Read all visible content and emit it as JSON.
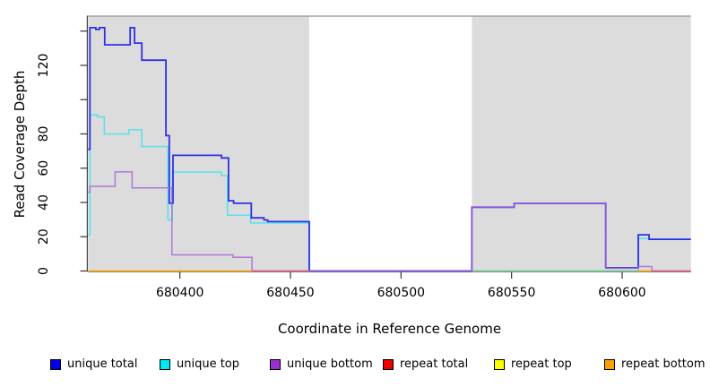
{
  "chart_data": {
    "type": "step-line",
    "title": "",
    "xlabel": "Coordinate in Reference Genome",
    "ylabel": "Read Coverage Depth",
    "xlim": [
      680358.5,
      680631.1
    ],
    "ylim": [
      0,
      149
    ],
    "x_ticks": {
      "values": [
        680400,
        680450,
        680500,
        680550,
        680600
      ],
      "labels": [
        "680400",
        "680450",
        "680500",
        "680550",
        "680600"
      ]
    },
    "y_ticks": {
      "values": [
        0,
        20,
        40,
        60,
        80,
        100,
        120,
        140
      ],
      "labels": [
        "0",
        "20",
        "40",
        "60",
        "80",
        "",
        "120",
        ""
      ]
    },
    "grid": false,
    "panel_color": "#DCDCDC",
    "background_panels": [
      [
        680358.5,
        680458.5
      ],
      [
        680532,
        680631.1
      ]
    ],
    "coverage_gap": {
      "range": [
        680458.5,
        680532
      ],
      "top_line_color": "#A0A0A0"
    },
    "series": [
      {
        "name": "unique top",
        "color": "#35E2F2",
        "opacity": 0.8,
        "width": 1.5,
        "segments": [
          {
            "points": [
              [
                680358.5,
                21
              ],
              [
                680359.3,
                91
              ],
              [
                680362.7,
                90
              ],
              [
                680365.8,
                80
              ],
              [
                680376.9,
                82.4
              ],
              [
                680382.8,
                72.6
              ],
              [
                680394.6,
                29.8
              ],
              [
                680396.6,
                57.7
              ],
              [
                680418.8,
                55.5
              ],
              [
                680421.5,
                32.5
              ],
              [
                680432,
                28
              ],
              [
                680458.5,
                0
              ],
              [
                680607.3,
                19
              ],
              [
                680612.2,
                18.5
              ]
            ],
            "end": 680631.1
          }
        ]
      },
      {
        "name": "unique total",
        "color": "#2222E6",
        "opacity": 0.92,
        "width": 1.8,
        "segments": [
          {
            "points": [
              [
                680358.5,
                71
              ],
              [
                680359.3,
                142
              ],
              [
                680362,
                141
              ],
              [
                680363.6,
                142
              ],
              [
                680366,
                132
              ],
              [
                680377.5,
                142
              ],
              [
                680379.5,
                133
              ],
              [
                680382.8,
                123
              ],
              [
                680393.7,
                79
              ],
              [
                680395.2,
                39.5
              ],
              [
                680396.9,
                67.5
              ],
              [
                680418.8,
                66
              ],
              [
                680422,
                41
              ],
              [
                680424.3,
                39.5
              ],
              [
                680432.3,
                31
              ],
              [
                680438,
                29.8
              ],
              [
                680439.7,
                28.8
              ],
              [
                680458.5,
                0
              ],
              [
                680532,
                37.2
              ],
              [
                680551.2,
                39.4
              ],
              [
                680592.6,
                1.9
              ],
              [
                680607.3,
                21.1
              ],
              [
                680612.2,
                18.5
              ]
            ],
            "end": 680631.1
          }
        ]
      },
      {
        "name": "unique bottom",
        "color": "#A55FD9",
        "opacity": 0.8,
        "width": 1.5,
        "segments": [
          {
            "points": [
              [
                680358.5,
                46
              ],
              [
                680359.3,
                49.4
              ],
              [
                680370.7,
                57.8
              ],
              [
                680378.4,
                48.5
              ],
              [
                680396.4,
                9.4
              ],
              [
                680424,
                8
              ],
              [
                680432.6,
                0
              ],
              [
                680532,
                37.2
              ],
              [
                680551.2,
                39.4
              ],
              [
                680592.6,
                1.6
              ],
              [
                680607.3,
                2.6
              ],
              [
                680613.4,
                0
              ]
            ],
            "end": 680631.1
          }
        ]
      },
      {
        "name": "repeat total",
        "color": "#E0587C",
        "opacity": 0.95,
        "width": 1.5,
        "segments": [
          {
            "points": [
              [
                680432.6,
                0
              ]
            ],
            "end": 680458.5
          },
          {
            "points": [
              [
                680613.4,
                0
              ]
            ],
            "end": 680631.1
          }
        ]
      },
      {
        "name": "repeat top",
        "color": "#7CC87C",
        "opacity": 0.9,
        "width": 1.5,
        "segments": [
          {
            "points": [
              [
                680532,
                0
              ]
            ],
            "end": 680607.3
          }
        ]
      },
      {
        "name": "repeat bottom",
        "color": "#FFA500",
        "opacity": 1,
        "width": 1.5,
        "segments": [
          {
            "points": [
              [
                680358.5,
                0
              ]
            ],
            "end": 680432.6
          },
          {
            "points": [
              [
                680607.3,
                0
              ]
            ],
            "end": 680613.4
          }
        ]
      }
    ],
    "legend": [
      {
        "label": "unique total",
        "color": "#0000EE"
      },
      {
        "label": "unique top",
        "color": "#00E8F0"
      },
      {
        "label": "unique bottom",
        "color": "#9B30D0"
      },
      {
        "label": "repeat total",
        "color": "#EE0000"
      },
      {
        "label": "repeat top",
        "color": "#FFFF00"
      },
      {
        "label": "repeat bottom",
        "color": "#FFA000"
      }
    ],
    "legend_position": "bottom"
  }
}
